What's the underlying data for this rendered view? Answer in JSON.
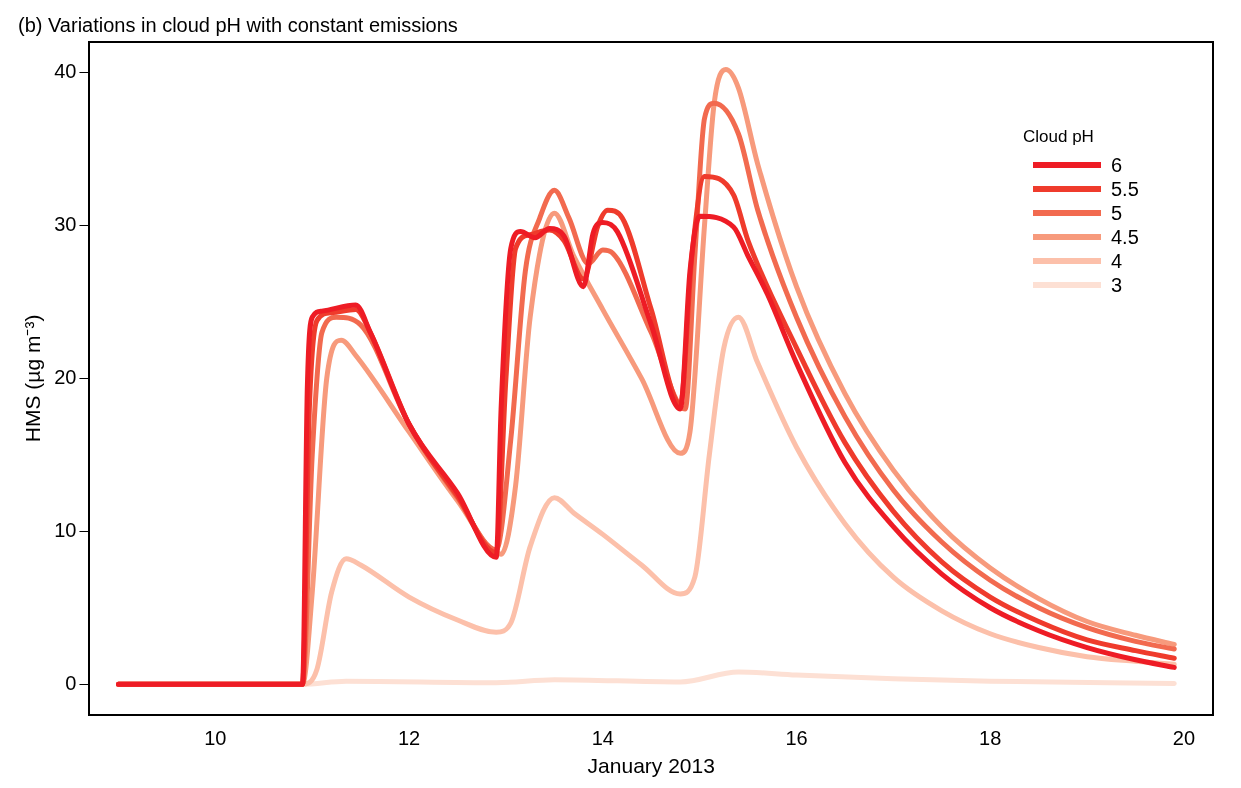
{
  "chart_data": {
    "type": "line",
    "title": "(b) Variations in cloud pH with constant emissions",
    "xlabel": "January 2013",
    "ylabel": "HMS (µg m⁻³)",
    "legend_title": "Cloud pH",
    "legend": "top right",
    "grid": false,
    "marker": "none",
    "line_style": "solid",
    "xlim": [
      8.7,
      20.3
    ],
    "xticks": [
      10,
      12,
      14,
      16,
      18,
      20
    ],
    "ylim": [
      -2,
      42
    ],
    "yticks": [
      0,
      10,
      20,
      30,
      40
    ],
    "series": [
      {
        "name": "6",
        "color": "#ee1c25",
        "x": [
          9,
          10.9,
          10.95,
          11.0,
          11.1,
          11.45,
          11.6,
          12,
          12.5,
          12.9,
          12.95,
          13.05,
          13.15,
          13.3,
          13.45,
          13.6,
          13.8,
          13.9,
          14.0,
          14.15,
          14.5,
          14.8,
          14.9,
          15.0,
          15.35,
          15.5,
          15.7,
          16,
          16.5,
          17,
          17.5,
          18,
          18.5,
          19,
          19.5,
          19.9
        ],
        "values": [
          0,
          0,
          19.5,
          24,
          24.4,
          24.8,
          23,
          17,
          12.5,
          8.3,
          18,
          28.5,
          29.6,
          29.2,
          29.8,
          29.3,
          26,
          29.5,
          30.2,
          29.6,
          23.5,
          18,
          27,
          30.6,
          29.9,
          28,
          25.5,
          21,
          14.5,
          10.3,
          7.2,
          5,
          3.5,
          2.4,
          1.6,
          1.1
        ]
      },
      {
        "name": "5.5",
        "color": "#ef3b2c",
        "x": [
          9,
          10.9,
          10.97,
          11.05,
          11.2,
          11.45,
          11.6,
          12,
          12.5,
          12.9,
          13.0,
          13.1,
          13.25,
          13.45,
          13.6,
          13.8,
          13.95,
          14.05,
          14.2,
          14.5,
          14.8,
          14.92,
          15.05,
          15.35,
          15.5,
          16,
          16.5,
          17,
          17.5,
          18,
          18.5,
          19,
          19.5,
          19.9
        ],
        "values": [
          0,
          0,
          18,
          23.8,
          24.3,
          24.5,
          23,
          17,
          12.3,
          8.6,
          20,
          28.5,
          29.4,
          29.7,
          29,
          26.5,
          30,
          31,
          30.5,
          24.5,
          18.3,
          28,
          33.2,
          32,
          29,
          22,
          15.8,
          11.3,
          8,
          5.7,
          4.1,
          2.9,
          2.2,
          1.7
        ]
      },
      {
        "name": "5",
        "color": "#f26a4f",
        "x": [
          9,
          10.9,
          11.0,
          11.1,
          11.25,
          11.5,
          12,
          12.5,
          12.9,
          13.05,
          13.2,
          13.35,
          13.5,
          13.65,
          13.85,
          14.0,
          14.1,
          14.5,
          14.85,
          14.95,
          15.05,
          15.15,
          15.4,
          15.6,
          16,
          16.5,
          17,
          17.5,
          18,
          18.5,
          19,
          19.5,
          19.9
        ],
        "values": [
          0,
          0,
          15,
          23,
          24,
          23.5,
          17,
          12.2,
          8.8,
          16,
          27,
          30.5,
          32.3,
          30.5,
          27.5,
          28.4,
          28.2,
          23,
          18,
          28,
          37,
          38,
          36,
          31,
          24,
          17.5,
          12.7,
          9.3,
          6.8,
          5,
          3.7,
          2.8,
          2.3
        ]
      },
      {
        "name": "4.5",
        "color": "#f79a7c",
        "x": [
          9,
          10.9,
          11.0,
          11.15,
          11.3,
          11.45,
          12,
          12.5,
          12.95,
          13.1,
          13.25,
          13.5,
          13.7,
          14.0,
          14.4,
          14.8,
          14.9,
          15.05,
          15.15,
          15.27,
          15.4,
          15.6,
          16,
          16.5,
          17,
          17.5,
          18,
          18.5,
          19,
          19.5,
          19.9
        ],
        "values": [
          0,
          0,
          6,
          20,
          22.5,
          21.5,
          16.5,
          12,
          8.5,
          13,
          24,
          30.8,
          28,
          24.5,
          20,
          15.1,
          16.5,
          30,
          38,
          40.2,
          39,
          34,
          26,
          19,
          14,
          10.3,
          7.6,
          5.6,
          4.1,
          3.2,
          2.6
        ]
      },
      {
        "name": "4",
        "color": "#fcc0aa",
        "x": [
          9,
          10.9,
          11.05,
          11.2,
          11.35,
          11.5,
          12,
          12.5,
          12.9,
          13.05,
          13.25,
          13.5,
          13.7,
          14.0,
          14.4,
          14.8,
          14.95,
          15.1,
          15.25,
          15.4,
          15.6,
          16,
          16.5,
          17,
          17.5,
          18,
          18.5,
          19,
          19.5,
          19.9
        ],
        "values": [
          0,
          0,
          1,
          6,
          8.2,
          7.8,
          5.7,
          4.2,
          3.4,
          4,
          9,
          12.2,
          11.2,
          9.8,
          7.8,
          5.9,
          7,
          15,
          22,
          24,
          21,
          15.5,
          10.5,
          7,
          4.8,
          3.3,
          2.4,
          1.8,
          1.5,
          1.3
        ]
      },
      {
        "name": "3",
        "color": "#fde0d4",
        "x": [
          9,
          10.9,
          11.35,
          12.9,
          13.5,
          14.8,
          15.4,
          16,
          17,
          18,
          19.9
        ],
        "values": [
          0,
          0,
          0.2,
          0.1,
          0.3,
          0.15,
          0.8,
          0.6,
          0.35,
          0.2,
          0.05
        ]
      }
    ]
  }
}
